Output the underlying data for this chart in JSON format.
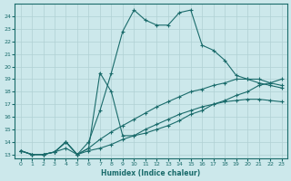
{
  "xlabel": "Humidex (Indice chaleur)",
  "ylabel": "",
  "xlim": [
    -0.5,
    23.5
  ],
  "ylim": [
    12.7,
    25.0
  ],
  "yticks": [
    13,
    14,
    15,
    16,
    17,
    18,
    19,
    20,
    21,
    22,
    23,
    24
  ],
  "xticks": [
    0,
    1,
    2,
    3,
    4,
    5,
    6,
    7,
    8,
    9,
    10,
    11,
    12,
    13,
    14,
    15,
    16,
    17,
    18,
    19,
    20,
    21,
    22,
    23
  ],
  "bg_color": "#cce8eb",
  "line_color": "#1a6b6b",
  "grid_color": "#b0d0d4",
  "lines": [
    {
      "x": [
        0,
        1,
        2,
        3,
        4,
        5,
        6,
        7,
        8,
        9,
        10,
        11,
        12,
        13,
        14,
        15,
        16,
        17,
        18,
        19,
        20,
        21,
        22,
        23
      ],
      "y": [
        13.3,
        13.0,
        13.0,
        13.2,
        14.0,
        13.0,
        14.0,
        16.5,
        19.5,
        22.8,
        24.5,
        23.7,
        23.3,
        23.3,
        24.3,
        24.5,
        21.7,
        21.3,
        20.5,
        19.3,
        19.0,
        18.7,
        18.5,
        18.3
      ]
    },
    {
      "x": [
        0,
        1,
        2,
        3,
        4,
        5,
        6,
        7,
        8,
        9,
        10,
        11,
        12,
        13,
        14,
        15,
        16,
        17,
        18,
        19,
        20,
        21,
        22,
        23
      ],
      "y": [
        13.3,
        13.0,
        13.0,
        13.2,
        13.5,
        13.0,
        13.5,
        19.5,
        18.0,
        14.5,
        14.5,
        14.7,
        15.0,
        15.3,
        15.7,
        16.2,
        16.5,
        17.0,
        17.3,
        17.7,
        18.0,
        18.5,
        18.7,
        19.0
      ]
    },
    {
      "x": [
        0,
        1,
        2,
        3,
        4,
        5,
        6,
        7,
        8,
        9,
        10,
        11,
        12,
        13,
        14,
        15,
        16,
        17,
        18,
        19,
        20,
        21,
        22,
        23
      ],
      "y": [
        13.3,
        13.0,
        13.0,
        13.2,
        14.0,
        13.0,
        13.5,
        14.2,
        14.8,
        15.3,
        15.8,
        16.3,
        16.8,
        17.2,
        17.6,
        18.0,
        18.2,
        18.5,
        18.7,
        19.0,
        19.0,
        19.0,
        18.7,
        18.5
      ]
    },
    {
      "x": [
        0,
        1,
        2,
        3,
        4,
        5,
        6,
        7,
        8,
        9,
        10,
        11,
        12,
        13,
        14,
        15,
        16,
        17,
        18,
        19,
        20,
        21,
        22,
        23
      ],
      "y": [
        13.3,
        13.0,
        13.0,
        13.2,
        14.0,
        13.0,
        13.3,
        13.5,
        13.8,
        14.2,
        14.5,
        15.0,
        15.4,
        15.8,
        16.2,
        16.5,
        16.8,
        17.0,
        17.2,
        17.3,
        17.4,
        17.4,
        17.3,
        17.2
      ]
    }
  ]
}
